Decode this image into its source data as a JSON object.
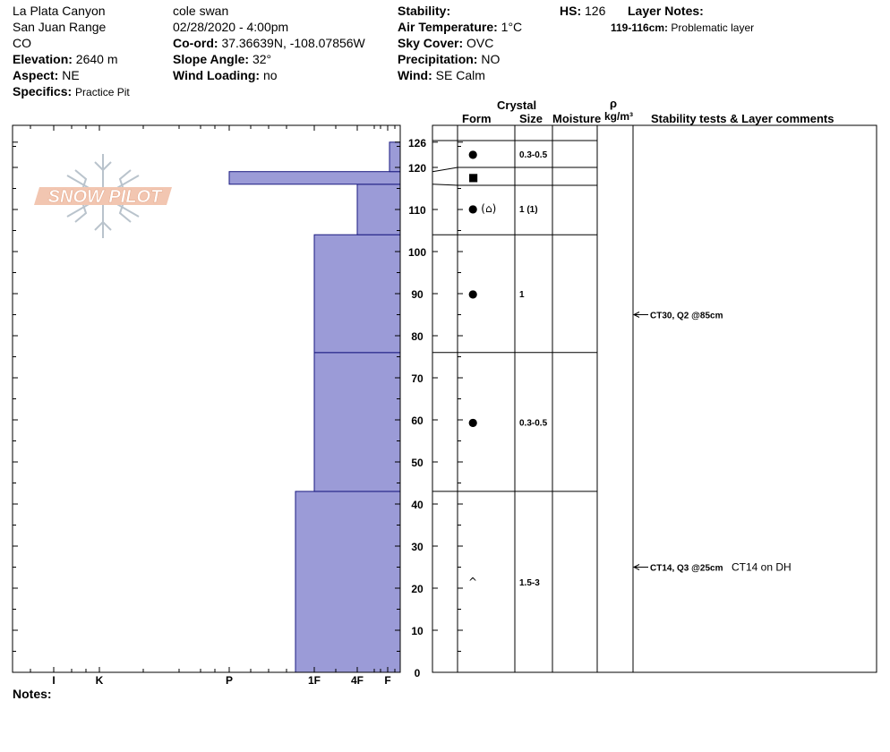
{
  "header": {
    "location": "La Plata Canyon",
    "range": "San Juan Range",
    "state": "CO",
    "elevation_label": "Elevation:",
    "elevation": "2640 m",
    "aspect_label": "Aspect:",
    "aspect": "NE",
    "specifics_label": "Specifics:",
    "specifics": "Practice Pit",
    "observer": "cole  swan",
    "datetime": "02/28/2020 - 4:00pm",
    "coord_label": "Co-ord:",
    "coord": "37.36639N, -108.07856W",
    "slope_label": "Slope Angle:",
    "slope": "32°",
    "wind_loading_label": "Wind Loading:",
    "wind_loading": "no",
    "stability_label": "Stability:",
    "stability": "",
    "air_temp_label": "Air Temperature:",
    "air_temp": "1°C",
    "sky_label": "Sky Cover:",
    "sky": "OVC",
    "precip_label": "Precipitation:",
    "precip": "NO",
    "wind_label": "Wind:",
    "wind": "SE  Calm",
    "hs_label": "HS:",
    "hs": "126",
    "layer_notes_label": "Layer Notes:",
    "layer_note_range": "119-116cm:",
    "layer_note_text": "Problematic layer"
  },
  "columns": {
    "crystal": "Crystal",
    "form": "Form",
    "size": "Size",
    "moisture": "Moisture",
    "rho": "ρ",
    "density_unit": "kg/m³",
    "stability_comments": "Stability tests & Layer comments"
  },
  "logo_text": "SNOW PILOT",
  "notes_label": "Notes:",
  "notes": "",
  "colors": {
    "hardness_fill": "#9b9bd7",
    "hardness_stroke": "#1a1a80"
  },
  "chart_data": {
    "type": "bar",
    "orientation": "horizontal",
    "y_axis": {
      "label": "",
      "range": [
        0,
        126
      ],
      "unit": "cm",
      "ticks": [
        0,
        10,
        20,
        30,
        40,
        50,
        60,
        70,
        80,
        90,
        100,
        110,
        120,
        126
      ]
    },
    "x_axis": {
      "ticks": [
        "I",
        "K",
        "P",
        "1F",
        "4F",
        "F"
      ],
      "direction": "right-to-left"
    },
    "layers": [
      {
        "bottom": 0,
        "top": 43,
        "hardness": "1F+"
      },
      {
        "bottom": 43,
        "top": 76,
        "hardness": "1F"
      },
      {
        "bottom": 76,
        "top": 104,
        "hardness": "1F"
      },
      {
        "bottom": 104,
        "top": 116,
        "hardness": "4F"
      },
      {
        "bottom": 116,
        "top": 119,
        "hardness": "P"
      },
      {
        "bottom": 119,
        "top": 126,
        "hardness": "F+"
      }
    ],
    "crystal_layers": [
      {
        "bottom": 119,
        "top": 126,
        "form": "●",
        "size": "0.3-0.5"
      },
      {
        "bottom": 116,
        "top": 119,
        "form": "■",
        "size": ""
      },
      {
        "bottom": 104,
        "top": 116,
        "form": "● (⌂)",
        "size": "1 (1)"
      },
      {
        "bottom": 76,
        "top": 104,
        "form": "●",
        "size": "1"
      },
      {
        "bottom": 43,
        "top": 76,
        "form": "●",
        "size": "0.3-0.5"
      },
      {
        "bottom": 0,
        "top": 43,
        "form": "^",
        "size": "1.5-3"
      }
    ],
    "stability_tests": [
      {
        "depth": 85,
        "label": "CT30, Q2 @85cm",
        "comment": ""
      },
      {
        "depth": 25,
        "label": "CT14, Q3 @25cm",
        "comment": "CT14 on DH"
      }
    ]
  }
}
